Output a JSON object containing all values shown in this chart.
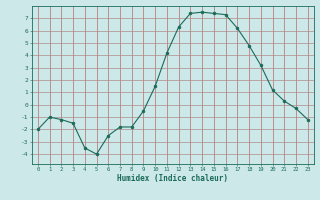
{
  "x": [
    0,
    1,
    2,
    3,
    4,
    5,
    6,
    7,
    8,
    9,
    10,
    11,
    12,
    13,
    14,
    15,
    16,
    17,
    18,
    19,
    20,
    21,
    22,
    23
  ],
  "y": [
    -2,
    -1,
    -1.2,
    -1.5,
    -3.5,
    -4,
    -2.5,
    -1.8,
    -1.8,
    -0.5,
    1.5,
    4.2,
    6.3,
    7.4,
    7.5,
    7.4,
    7.3,
    6.2,
    4.8,
    3.2,
    1.2,
    0.3,
    -0.3,
    -1.2
  ],
  "title": "",
  "xlabel": "Humidex (Indice chaleur)",
  "ylabel": "",
  "ylim": [
    -4.8,
    8.0
  ],
  "xlim": [
    -0.5,
    23.5
  ],
  "yticks": [
    -4,
    -3,
    -2,
    -1,
    0,
    1,
    2,
    3,
    4,
    5,
    6,
    7
  ],
  "xticks": [
    0,
    1,
    2,
    3,
    4,
    5,
    6,
    7,
    8,
    9,
    10,
    11,
    12,
    13,
    14,
    15,
    16,
    17,
    18,
    19,
    20,
    21,
    22,
    23
  ],
  "line_color": "#1a6b5a",
  "marker_color": "#1a6b5a",
  "bg_color": "#cde8e8",
  "grid_color_major": "#b08080",
  "grid_color_minor": "#c0d8d8",
  "axis_color": "#1a6b5a",
  "label_color": "#1a6b5a",
  "xlabel_color": "#1a6b5a",
  "tick_color": "#1a6b5a"
}
